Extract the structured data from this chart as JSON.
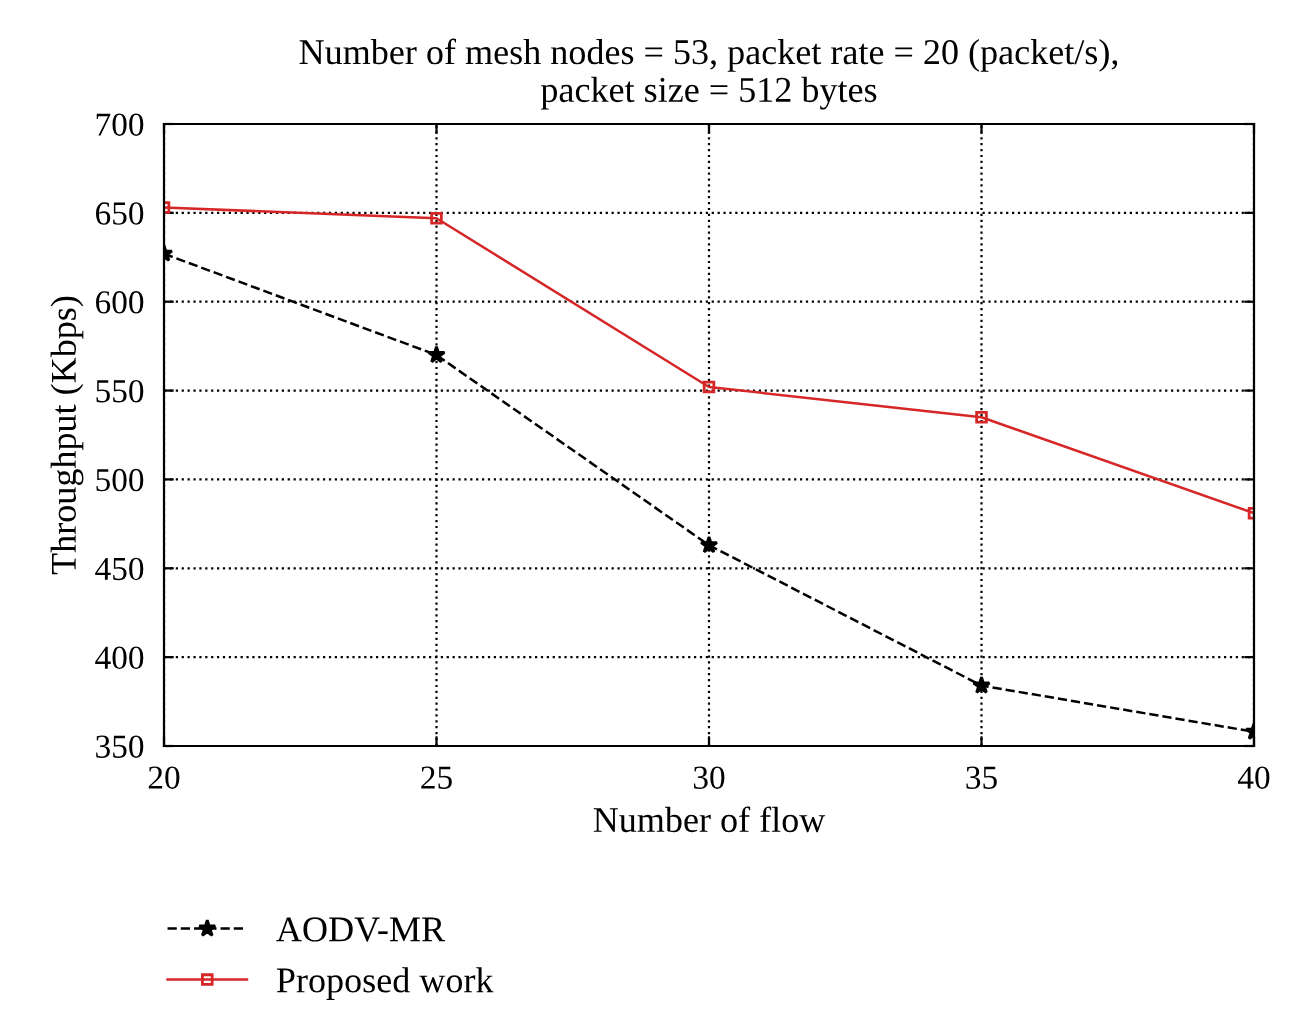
{
  "chart_data": {
    "type": "line",
    "title": "Number of mesh nodes = 53, packet rate = 20 (packet/s),\npacket size = 512 bytes",
    "xlabel": "Number of flow",
    "ylabel": "Throughput (Kbps)",
    "x": [
      20,
      25,
      30,
      35,
      40
    ],
    "series": [
      {
        "name": "AODV-MR",
        "color": "#000000",
        "values": [
          627,
          570,
          463,
          384,
          358
        ],
        "marker": "star",
        "line_style": "dashed"
      },
      {
        "name": "Proposed work",
        "color": "#d62728",
        "values": [
          653,
          647,
          552,
          535,
          481
        ],
        "marker": "square",
        "line_style": "solid"
      }
    ],
    "xlim": [
      20,
      40
    ],
    "xticks": [
      20,
      25,
      30,
      35,
      40
    ],
    "ylim": [
      350,
      700
    ],
    "yticks": [
      350,
      400,
      450,
      500,
      550,
      600,
      650,
      700
    ],
    "grid": true,
    "legend": "bottom left"
  }
}
